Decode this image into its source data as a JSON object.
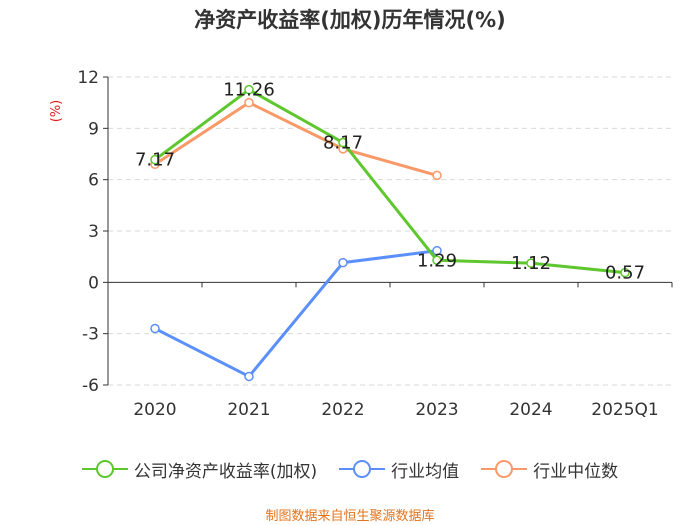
{
  "chart_data": {
    "type": "line",
    "title": "净资产收益率(加权)历年情况(%)",
    "ylabel": "(%)",
    "xlabel": "",
    "categories": [
      "2020",
      "2021",
      "2022",
      "2023",
      "2024",
      "2025Q1"
    ],
    "ylim": [
      -6,
      12
    ],
    "yticks": [
      -6,
      -3,
      0,
      3,
      6,
      9,
      12
    ],
    "grid": true,
    "legend_position": "bottom",
    "series": [
      {
        "name": "公司净资产收益率(加权)",
        "color": "#5ec72e",
        "values": [
          7.17,
          11.26,
          8.17,
          1.29,
          1.12,
          0.57
        ],
        "labels": [
          "7.17",
          "11.26",
          "8.17",
          "1.29",
          "1.12",
          "0.57"
        ]
      },
      {
        "name": "行业均值",
        "color": "#5b8ff9",
        "values": [
          -2.7,
          -5.5,
          1.15,
          1.85,
          null,
          null
        ]
      },
      {
        "name": "行业中位数",
        "color": "#f99967",
        "values": [
          6.9,
          10.5,
          7.8,
          6.25,
          null,
          null
        ]
      }
    ]
  },
  "source": "制图数据来自恒生聚源数据库"
}
